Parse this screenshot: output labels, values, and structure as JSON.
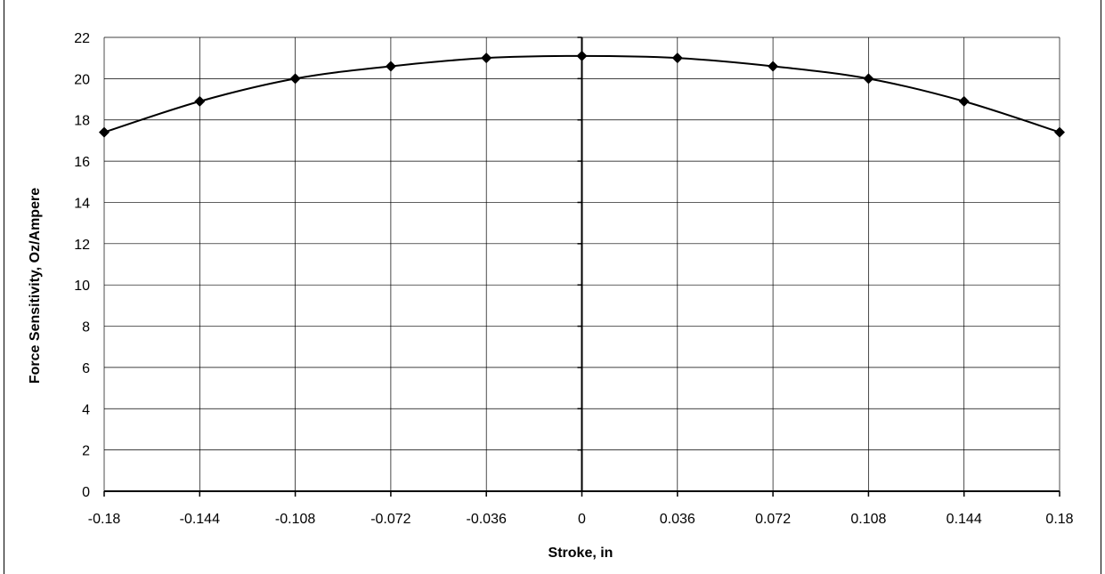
{
  "chart_data": {
    "type": "line",
    "title": "",
    "xlabel": "Stroke, in",
    "ylabel": "Force Sensitivity, Oz/Ampere",
    "xlim": [
      -0.18,
      0.18
    ],
    "ylim": [
      0,
      22
    ],
    "x_ticks": [
      "-0.18",
      "-0.144",
      "-0.108",
      "-0.072",
      "-0.036",
      "0",
      "0.036",
      "0.072",
      "0.108",
      "0.144",
      "0.18"
    ],
    "y_ticks": [
      "0",
      "2",
      "4",
      "6",
      "8",
      "10",
      "12",
      "14",
      "16",
      "18",
      "20",
      "22"
    ],
    "grid": true,
    "legend": "none",
    "series": [
      {
        "x": [
          -0.18,
          -0.144,
          -0.108,
          -0.072,
          -0.036,
          0,
          0.036,
          0.072,
          0.108,
          0.144,
          0.18
        ],
        "y": [
          17.4,
          18.9,
          20.0,
          20.6,
          21.0,
          21.1,
          21.0,
          20.6,
          20.0,
          18.9,
          17.4
        ],
        "color": "#000000",
        "marker": "diamond"
      }
    ]
  }
}
